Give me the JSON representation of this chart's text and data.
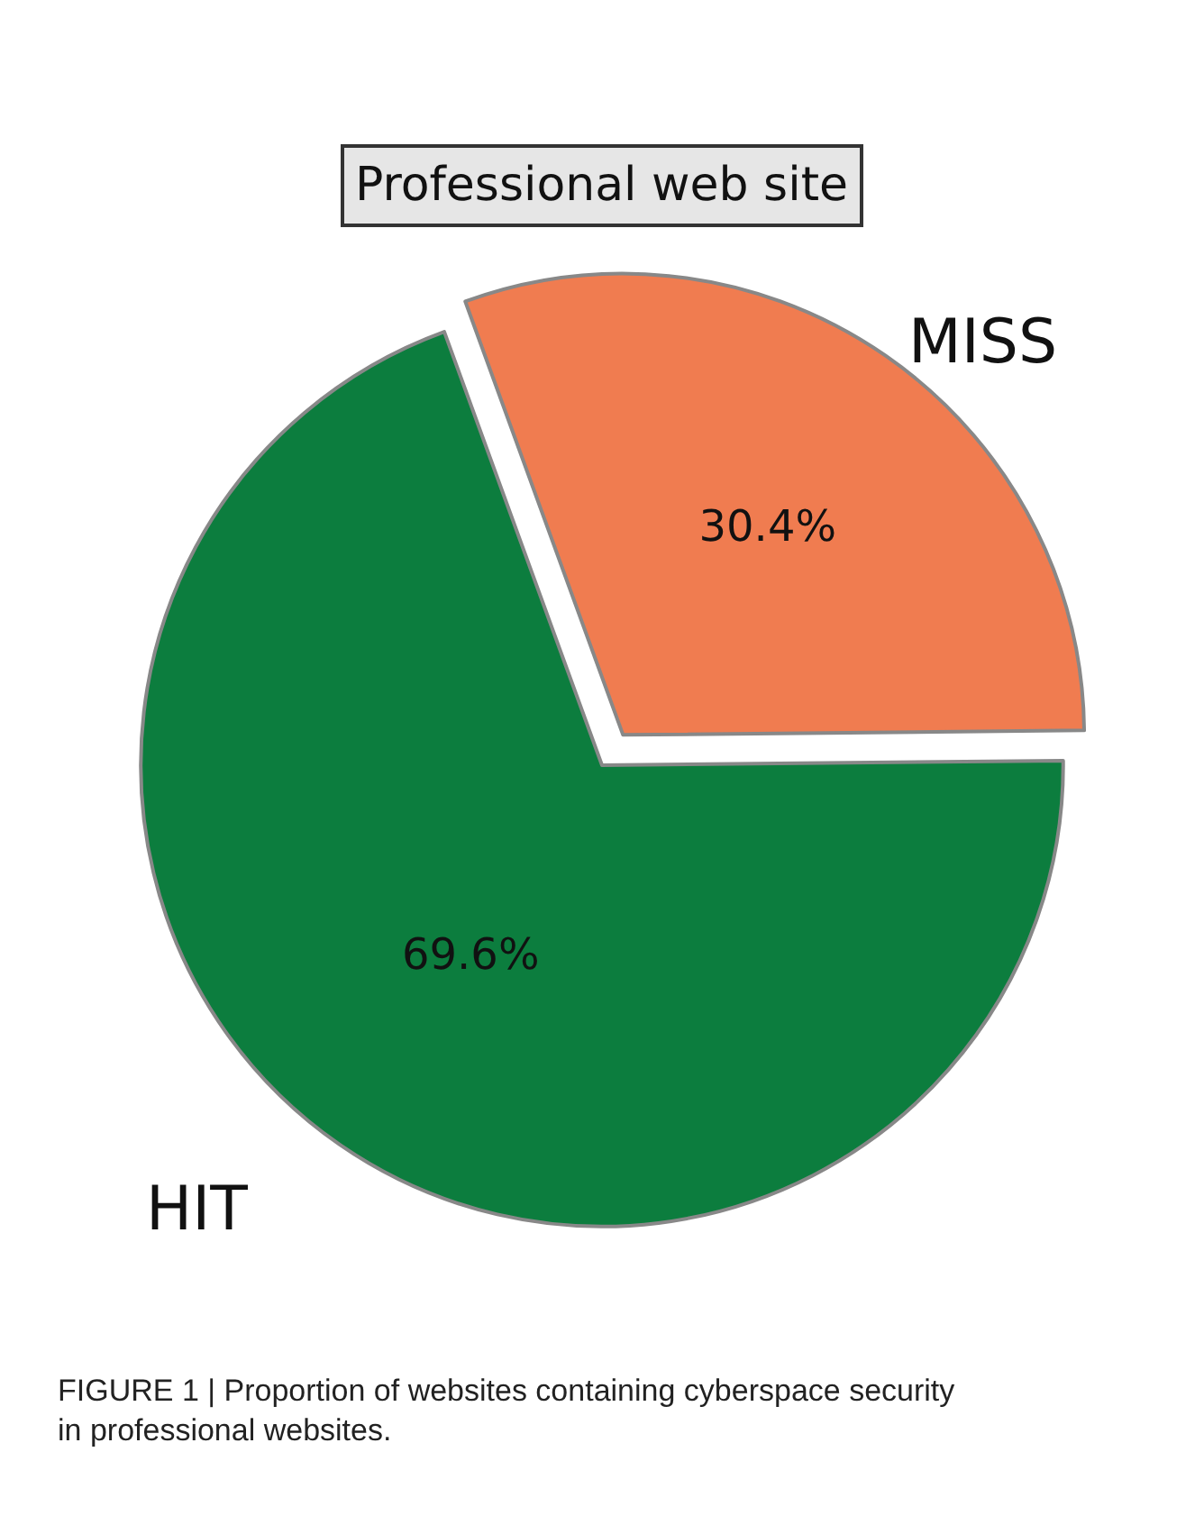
{
  "chart_data": {
    "type": "pie",
    "title": "Professional web site",
    "categories": [
      "MISS",
      "HIT"
    ],
    "values": [
      30.4,
      69.6
    ],
    "value_labels": [
      "30.4%",
      "69.6%"
    ],
    "colors": [
      "#f07c50",
      "#0c7d3e"
    ],
    "legend": false,
    "annotations": [
      "FIGURE 1 | Proportion of websites containing cyberspace security in professional websites."
    ]
  }
}
